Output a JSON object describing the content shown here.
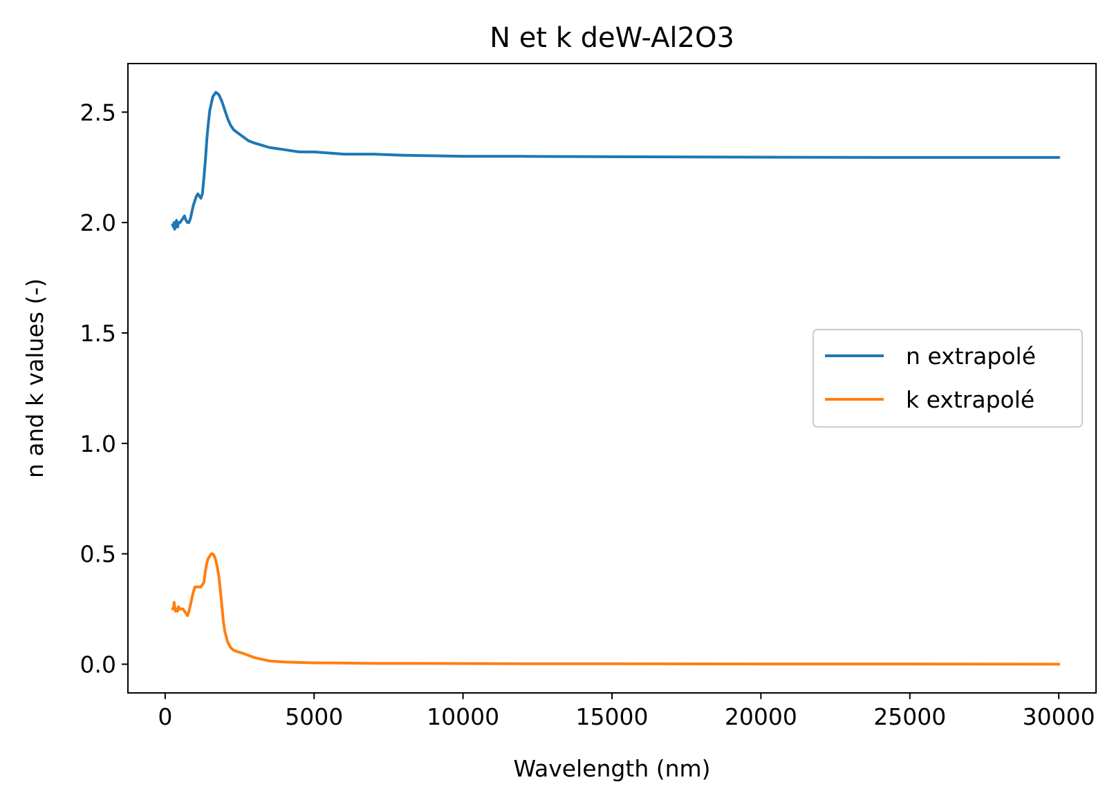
{
  "chart_data": {
    "type": "line",
    "title": "N et k deW-Al2O3",
    "xlabel": "Wavelength (nm)",
    "ylabel": "n and k values (-)",
    "xlim": [
      -1250,
      31250
    ],
    "ylim": [
      -0.13,
      2.72
    ],
    "xticks": [
      0,
      5000,
      10000,
      15000,
      20000,
      25000,
      30000
    ],
    "xtick_labels": [
      "0",
      "5000",
      "10000",
      "15000",
      "20000",
      "25000",
      "30000"
    ],
    "yticks": [
      0.0,
      0.5,
      1.0,
      1.5,
      2.0,
      2.5
    ],
    "ytick_labels": [
      "0.0",
      "0.5",
      "1.0",
      "1.5",
      "2.0",
      "2.5"
    ],
    "grid": false,
    "legend": {
      "placement": "center-right"
    },
    "series": [
      {
        "name": "n extrapolé",
        "color": "#1f77b4",
        "x": [
          250,
          280,
          300,
          320,
          350,
          380,
          400,
          420,
          450,
          500,
          550,
          600,
          650,
          700,
          750,
          800,
          850,
          900,
          950,
          1000,
          1050,
          1100,
          1150,
          1200,
          1250,
          1300,
          1350,
          1400,
          1450,
          1500,
          1600,
          1700,
          1800,
          1900,
          2000,
          2050,
          2100,
          2200,
          2300,
          2400,
          2500,
          2600,
          2800,
          3000,
          3500,
          4000,
          4500,
          5000,
          6000,
          7000,
          8000,
          10000,
          12000,
          15000,
          20000,
          25000,
          30000
        ],
        "y": [
          1.99,
          1.98,
          2.0,
          1.97,
          1.98,
          2.01,
          1.99,
          1.98,
          2.0,
          2.0,
          2.01,
          2.02,
          2.03,
          2.01,
          2.0,
          2.0,
          2.02,
          2.05,
          2.08,
          2.1,
          2.12,
          2.13,
          2.12,
          2.11,
          2.13,
          2.2,
          2.28,
          2.38,
          2.45,
          2.51,
          2.57,
          2.59,
          2.58,
          2.55,
          2.51,
          2.49,
          2.47,
          2.44,
          2.42,
          2.41,
          2.4,
          2.39,
          2.37,
          2.36,
          2.34,
          2.33,
          2.32,
          2.32,
          2.31,
          2.31,
          2.305,
          2.3,
          2.3,
          2.298,
          2.296,
          2.295,
          2.295
        ]
      },
      {
        "name": "k extrapolé",
        "color": "#ff7f0e",
        "x": [
          250,
          280,
          300,
          320,
          350,
          380,
          400,
          420,
          450,
          500,
          550,
          600,
          650,
          700,
          750,
          800,
          850,
          900,
          950,
          1000,
          1050,
          1100,
          1150,
          1200,
          1250,
          1300,
          1350,
          1400,
          1450,
          1500,
          1550,
          1600,
          1650,
          1700,
          1750,
          1800,
          1850,
          1900,
          1950,
          2000,
          2100,
          2200,
          2300,
          2400,
          2500,
          2600,
          2800,
          3000,
          3500,
          4000,
          4500,
          5000,
          6000,
          7000,
          8000,
          10000,
          12000,
          15000,
          20000,
          25000,
          30000
        ],
        "y": [
          0.25,
          0.25,
          0.28,
          0.26,
          0.24,
          0.25,
          0.25,
          0.24,
          0.26,
          0.25,
          0.25,
          0.25,
          0.24,
          0.23,
          0.22,
          0.24,
          0.27,
          0.3,
          0.33,
          0.35,
          0.35,
          0.35,
          0.35,
          0.35,
          0.36,
          0.37,
          0.42,
          0.46,
          0.48,
          0.49,
          0.5,
          0.5,
          0.49,
          0.47,
          0.44,
          0.4,
          0.34,
          0.27,
          0.2,
          0.15,
          0.1,
          0.075,
          0.063,
          0.058,
          0.054,
          0.05,
          0.04,
          0.03,
          0.015,
          0.01,
          0.008,
          0.006,
          0.005,
          0.004,
          0.004,
          0.003,
          0.002,
          0.002,
          0.001,
          0.001,
          0.0
        ]
      }
    ]
  }
}
